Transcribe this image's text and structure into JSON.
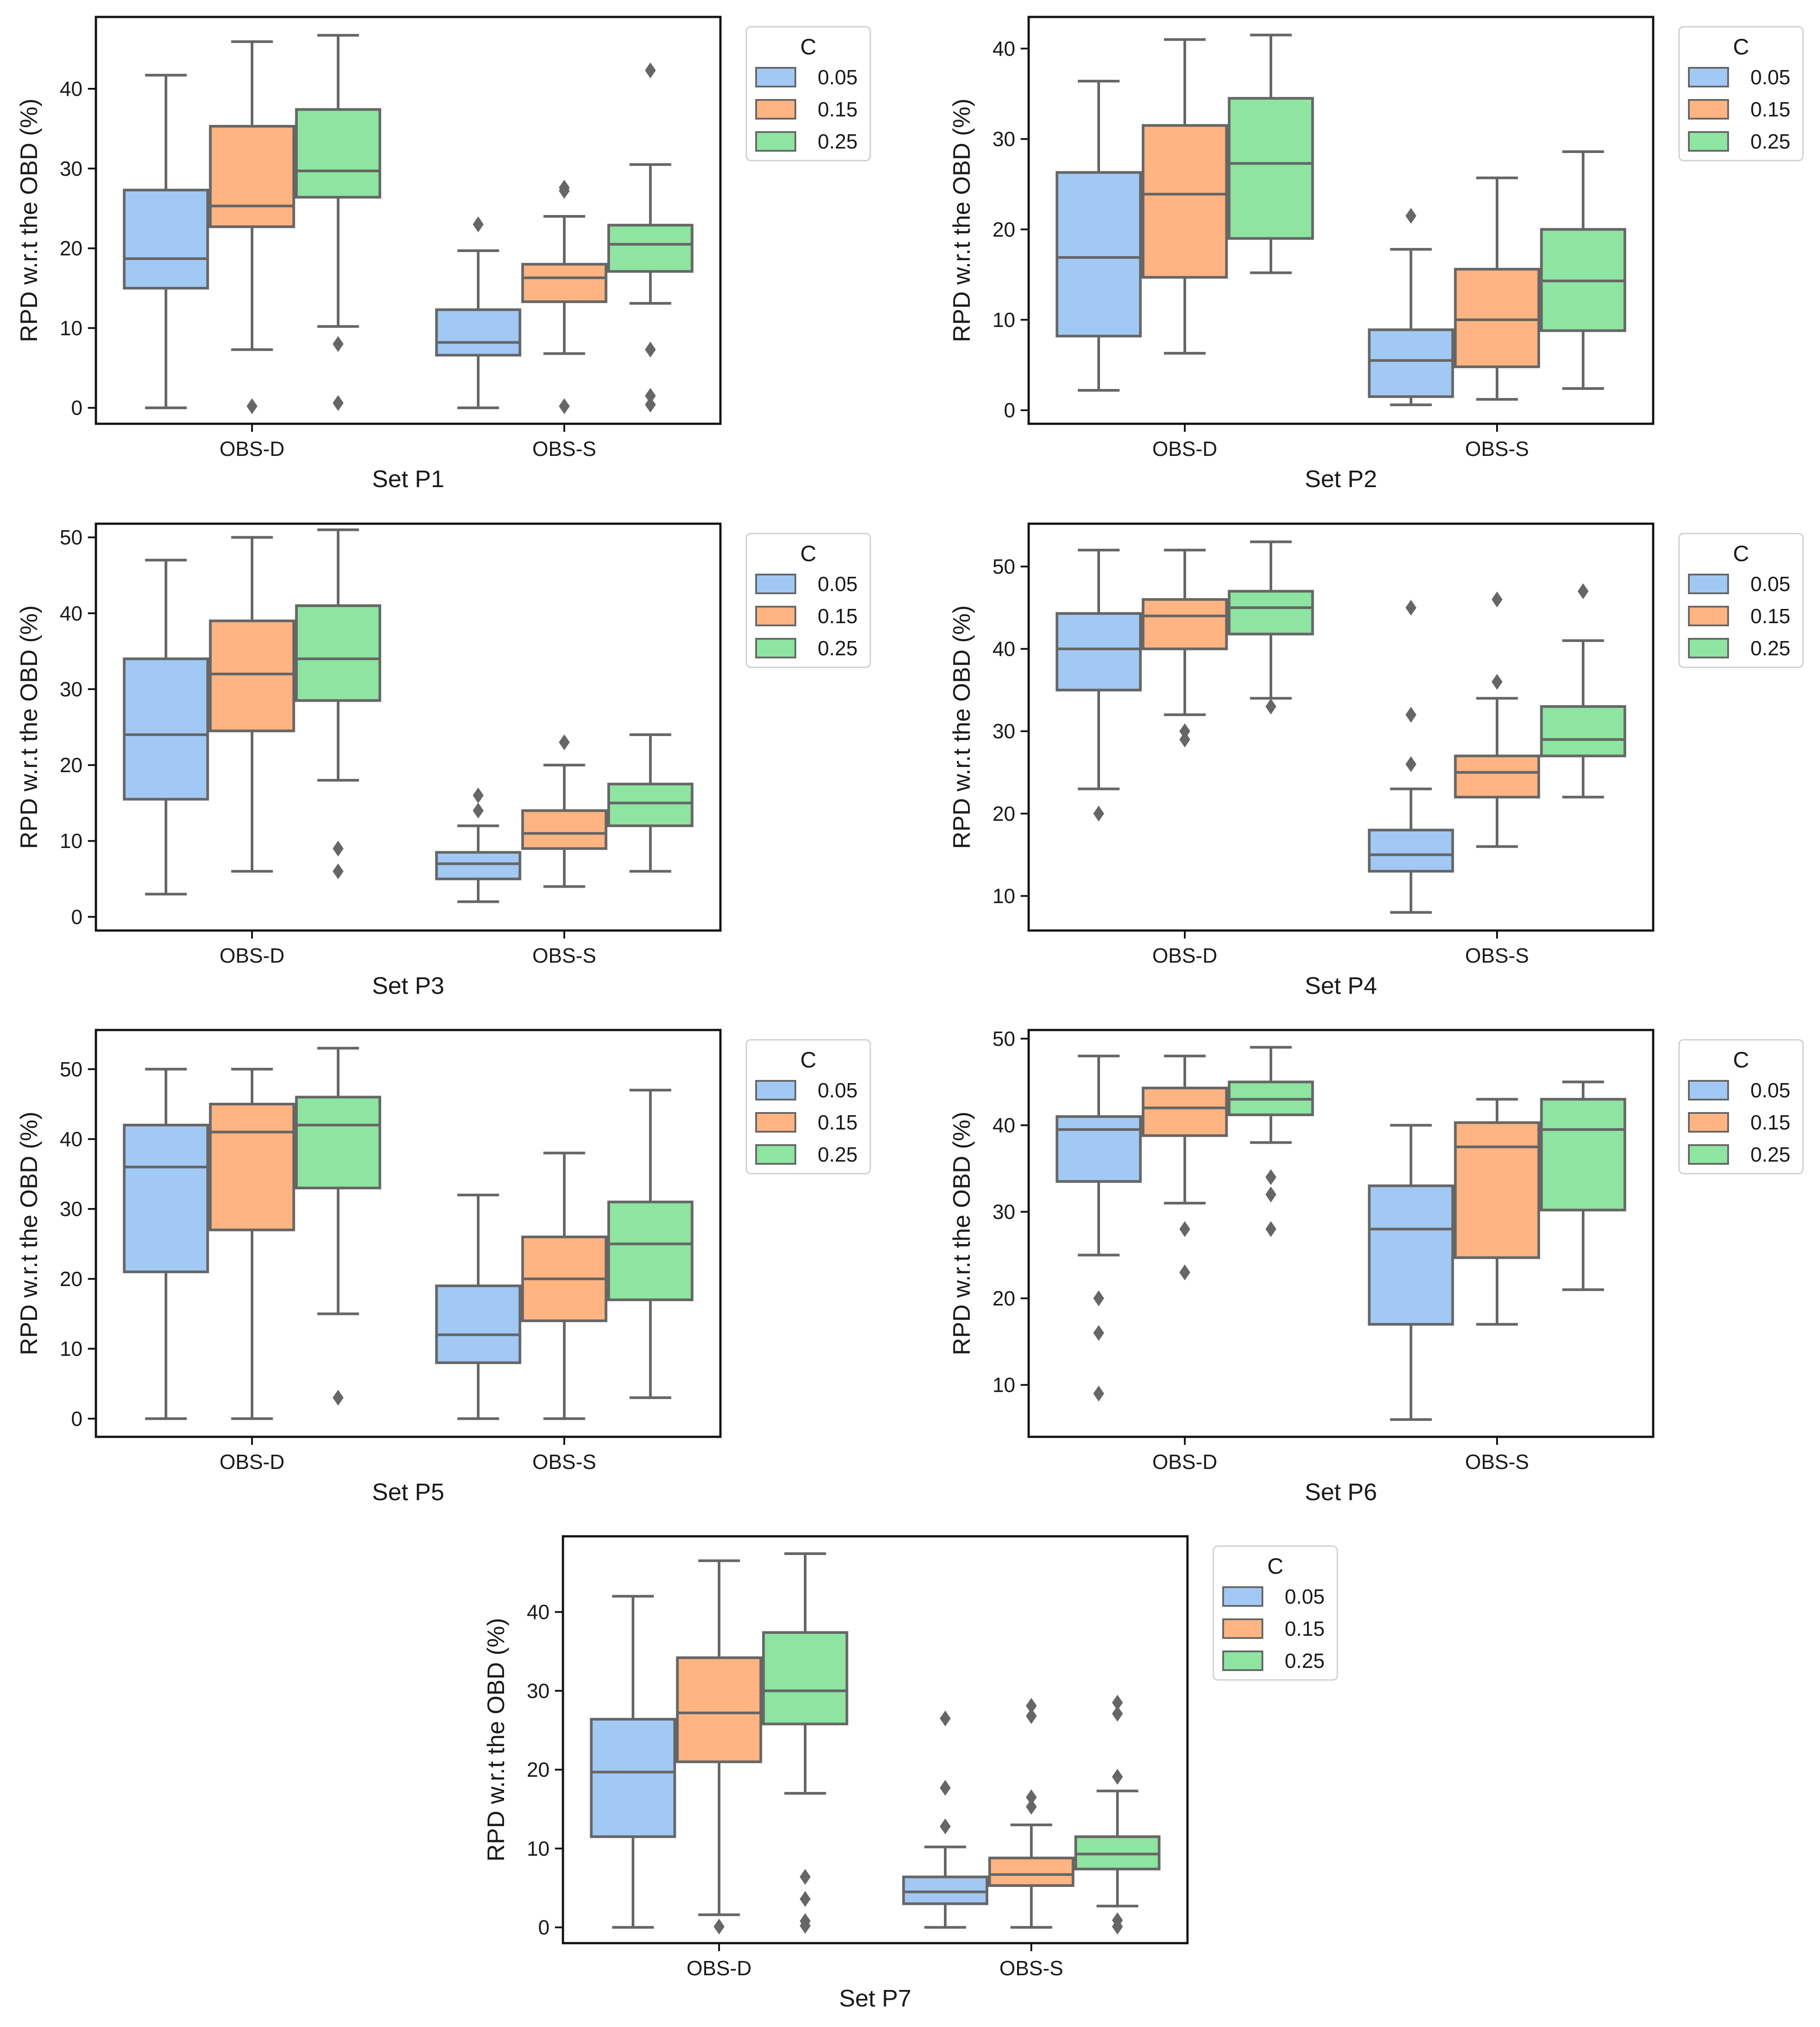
{
  "chart_data": [
    {
      "type": "box",
      "title": "",
      "xlabel": "Set P1",
      "ylabel": "RPD w.r.t the OBD (%)",
      "ylim": [
        -2,
        49
      ],
      "yticks": [
        0,
        10,
        20,
        30,
        40
      ],
      "categories": [
        "OBS-D",
        "OBS-S"
      ],
      "legend": {
        "title": "C",
        "position": "outside-right"
      },
      "series": [
        {
          "name": "0.05",
          "color": "#a1c9f4",
          "boxes": [
            {
              "whislo": 0,
              "q1": 15,
              "med": 18.7,
              "q3": 27.3,
              "whishi": 41.7,
              "fliers": []
            },
            {
              "whislo": 0,
              "q1": 6.6,
              "med": 8.2,
              "q3": 12.3,
              "whishi": 19.7,
              "fliers": [
                23
              ]
            }
          ]
        },
        {
          "name": "0.15",
          "color": "#ffb482",
          "boxes": [
            {
              "whislo": 7.3,
              "q1": 22.7,
              "med": 25.3,
              "q3": 35.3,
              "whishi": 45.9,
              "fliers": [
                0.2
              ]
            },
            {
              "whislo": 6.8,
              "q1": 13.3,
              "med": 16.3,
              "q3": 18,
              "whishi": 24,
              "fliers": [
                0.2,
                27.2,
                27.6
              ]
            }
          ]
        },
        {
          "name": "0.25",
          "color": "#8de5a1",
          "boxes": [
            {
              "whislo": 10.2,
              "q1": 26.4,
              "med": 29.7,
              "q3": 37.4,
              "whishi": 46.7,
              "fliers": [
                0.6,
                8
              ]
            },
            {
              "whislo": 13.1,
              "q1": 17.1,
              "med": 20.5,
              "q3": 22.9,
              "whishi": 30.5,
              "fliers": [
                0.4,
                1.5,
                7.3,
                42.3
              ]
            }
          ]
        }
      ]
    },
    {
      "type": "box",
      "title": "",
      "xlabel": "Set P2",
      "ylabel": "RPD w.r.t the OBD (%)",
      "ylim": [
        -1.5,
        43.5
      ],
      "yticks": [
        0,
        10,
        20,
        30,
        40
      ],
      "categories": [
        "OBS-D",
        "OBS-S"
      ],
      "legend": {
        "title": "C",
        "position": "outside-right"
      },
      "series": [
        {
          "name": "0.05",
          "color": "#a1c9f4",
          "boxes": [
            {
              "whislo": 2.2,
              "q1": 8.2,
              "med": 16.9,
              "q3": 26.3,
              "whishi": 36.4,
              "fliers": []
            },
            {
              "whislo": 0.6,
              "q1": 1.5,
              "med": 5.5,
              "q3": 8.9,
              "whishi": 17.8,
              "fliers": [
                21.5
              ]
            }
          ]
        },
        {
          "name": "0.15",
          "color": "#ffb482",
          "boxes": [
            {
              "whislo": 6.3,
              "q1": 14.7,
              "med": 23.9,
              "q3": 31.5,
              "whishi": 41,
              "fliers": []
            },
            {
              "whislo": 1.2,
              "q1": 4.8,
              "med": 10,
              "q3": 15.6,
              "whishi": 25.7,
              "fliers": []
            }
          ]
        },
        {
          "name": "0.25",
          "color": "#8de5a1",
          "boxes": [
            {
              "whislo": 15.2,
              "q1": 19,
              "med": 27.3,
              "q3": 34.5,
              "whishi": 41.5,
              "fliers": []
            },
            {
              "whislo": 2.4,
              "q1": 8.8,
              "med": 14.3,
              "q3": 20,
              "whishi": 28.6,
              "fliers": []
            }
          ]
        }
      ]
    },
    {
      "type": "box",
      "title": "",
      "xlabel": "Set P3",
      "ylabel": "RPD w.r.t the OBD (%)",
      "ylim": [
        -1.8,
        51.8
      ],
      "yticks": [
        0,
        10,
        20,
        30,
        40,
        50
      ],
      "categories": [
        "OBS-D",
        "OBS-S"
      ],
      "legend": {
        "title": "C",
        "position": "outside-right"
      },
      "series": [
        {
          "name": "0.05",
          "color": "#a1c9f4",
          "boxes": [
            {
              "whislo": 3,
              "q1": 15.5,
              "med": 24,
              "q3": 34,
              "whishi": 47,
              "fliers": []
            },
            {
              "whislo": 2,
              "q1": 5,
              "med": 7,
              "q3": 8.5,
              "whishi": 12,
              "fliers": [
                14,
                16
              ]
            }
          ]
        },
        {
          "name": "0.15",
          "color": "#ffb482",
          "boxes": [
            {
              "whislo": 6,
              "q1": 24.5,
              "med": 32,
              "q3": 39,
              "whishi": 50,
              "fliers": []
            },
            {
              "whislo": 4,
              "q1": 9,
              "med": 11,
              "q3": 14,
              "whishi": 20,
              "fliers": [
                23
              ]
            }
          ]
        },
        {
          "name": "0.25",
          "color": "#8de5a1",
          "boxes": [
            {
              "whislo": 18,
              "q1": 28.5,
              "med": 34,
              "q3": 41,
              "whishi": 51,
              "fliers": [
                6,
                9
              ]
            },
            {
              "whislo": 6,
              "q1": 12,
              "med": 15,
              "q3": 17.5,
              "whishi": 24,
              "fliers": []
            }
          ]
        }
      ]
    },
    {
      "type": "box",
      "title": "",
      "xlabel": "Set P4",
      "ylabel": "RPD w.r.t the OBD (%)",
      "ylim": [
        5.8,
        55.2
      ],
      "yticks": [
        10,
        20,
        30,
        40,
        50
      ],
      "categories": [
        "OBS-D",
        "OBS-S"
      ],
      "legend": {
        "title": "C",
        "position": "outside-right"
      },
      "series": [
        {
          "name": "0.05",
          "color": "#a1c9f4",
          "boxes": [
            {
              "whislo": 23,
              "q1": 35,
              "med": 40,
              "q3": 44.3,
              "whishi": 52,
              "fliers": [
                20
              ]
            },
            {
              "whislo": 8,
              "q1": 13,
              "med": 15,
              "q3": 18,
              "whishi": 23,
              "fliers": [
                26,
                32,
                45
              ]
            }
          ]
        },
        {
          "name": "0.15",
          "color": "#ffb482",
          "boxes": [
            {
              "whislo": 32,
              "q1": 40,
              "med": 44,
              "q3": 46,
              "whishi": 52,
              "fliers": [
                29,
                30
              ]
            },
            {
              "whislo": 16,
              "q1": 22,
              "med": 25,
              "q3": 27,
              "whishi": 34,
              "fliers": [
                36,
                46
              ]
            }
          ]
        },
        {
          "name": "0.25",
          "color": "#8de5a1",
          "boxes": [
            {
              "whislo": 34,
              "q1": 41.8,
              "med": 45,
              "q3": 47,
              "whishi": 53,
              "fliers": [
                33
              ]
            },
            {
              "whislo": 22,
              "q1": 27,
              "med": 29,
              "q3": 33,
              "whishi": 41,
              "fliers": [
                47
              ]
            }
          ]
        }
      ]
    },
    {
      "type": "box",
      "title": "",
      "xlabel": "Set P5",
      "ylabel": "RPD w.r.t the OBD (%)",
      "ylim": [
        -2.6,
        55.6
      ],
      "yticks": [
        0,
        10,
        20,
        30,
        40,
        50
      ],
      "categories": [
        "OBS-D",
        "OBS-S"
      ],
      "legend": {
        "title": "C",
        "position": "outside-right"
      },
      "series": [
        {
          "name": "0.05",
          "color": "#a1c9f4",
          "boxes": [
            {
              "whislo": 0,
              "q1": 21,
              "med": 36,
              "q3": 42,
              "whishi": 50,
              "fliers": []
            },
            {
              "whislo": 0,
              "q1": 8,
              "med": 12,
              "q3": 19,
              "whishi": 32,
              "fliers": []
            }
          ]
        },
        {
          "name": "0.15",
          "color": "#ffb482",
          "boxes": [
            {
              "whislo": 0,
              "q1": 27,
              "med": 41,
              "q3": 45,
              "whishi": 50,
              "fliers": []
            },
            {
              "whislo": 0,
              "q1": 14,
              "med": 20,
              "q3": 26,
              "whishi": 38,
              "fliers": []
            }
          ]
        },
        {
          "name": "0.25",
          "color": "#8de5a1",
          "boxes": [
            {
              "whislo": 15,
              "q1": 33,
              "med": 42,
              "q3": 46,
              "whishi": 53,
              "fliers": [
                3
              ]
            },
            {
              "whislo": 3,
              "q1": 17,
              "med": 25,
              "q3": 31,
              "whishi": 47,
              "fliers": []
            }
          ]
        }
      ]
    },
    {
      "type": "box",
      "title": "",
      "xlabel": "Set P6",
      "ylabel": "RPD w.r.t the OBD (%)",
      "ylim": [
        4,
        51
      ],
      "yticks": [
        10,
        20,
        30,
        40,
        50
      ],
      "categories": [
        "OBS-D",
        "OBS-S"
      ],
      "legend": {
        "title": "C",
        "position": "outside-right"
      },
      "series": [
        {
          "name": "0.05",
          "color": "#a1c9f4",
          "boxes": [
            {
              "whislo": 25,
              "q1": 33.5,
              "med": 39.5,
              "q3": 41,
              "whishi": 48,
              "fliers": [
                9,
                16,
                20
              ]
            },
            {
              "whislo": 6,
              "q1": 17,
              "med": 28,
              "q3": 33,
              "whishi": 40,
              "fliers": []
            }
          ]
        },
        {
          "name": "0.15",
          "color": "#ffb482",
          "boxes": [
            {
              "whislo": 31,
              "q1": 38.8,
              "med": 42,
              "q3": 44.3,
              "whishi": 48,
              "fliers": [
                23,
                28
              ]
            },
            {
              "whislo": 17,
              "q1": 24.7,
              "med": 37.5,
              "q3": 40.3,
              "whishi": 43,
              "fliers": []
            }
          ]
        },
        {
          "name": "0.25",
          "color": "#8de5a1",
          "boxes": [
            {
              "whislo": 38,
              "q1": 41.2,
              "med": 43,
              "q3": 45,
              "whishi": 49,
              "fliers": [
                28,
                32,
                34
              ]
            },
            {
              "whislo": 21,
              "q1": 30.2,
              "med": 39.5,
              "q3": 43,
              "whishi": 45,
              "fliers": []
            }
          ]
        }
      ]
    },
    {
      "type": "box",
      "title": "",
      "xlabel": "Set P7",
      "ylabel": "RPD w.r.t the OBD (%)",
      "ylim": [
        -2,
        49.6
      ],
      "yticks": [
        0,
        10,
        20,
        30,
        40
      ],
      "categories": [
        "OBS-D",
        "OBS-S"
      ],
      "legend": {
        "title": "C",
        "position": "outside-right"
      },
      "series": [
        {
          "name": "0.05",
          "color": "#a1c9f4",
          "boxes": [
            {
              "whislo": 0,
              "q1": 11.5,
              "med": 19.7,
              "q3": 26.4,
              "whishi": 42,
              "fliers": []
            },
            {
              "whislo": 0,
              "q1": 3,
              "med": 4.5,
              "q3": 6.4,
              "whishi": 10.2,
              "fliers": [
                12.8,
                17.7,
                26.5
              ]
            }
          ]
        },
        {
          "name": "0.15",
          "color": "#ffb482",
          "boxes": [
            {
              "whislo": 1.6,
              "q1": 21,
              "med": 27.2,
              "q3": 34.2,
              "whishi": 46.5,
              "fliers": [
                0.1
              ]
            },
            {
              "whislo": 0,
              "q1": 5.3,
              "med": 6.7,
              "q3": 8.8,
              "whishi": 13,
              "fliers": [
                15.3,
                16.5,
                26.8,
                28.1
              ]
            }
          ]
        },
        {
          "name": "0.25",
          "color": "#8de5a1",
          "boxes": [
            {
              "whislo": 17,
              "q1": 25.8,
              "med": 30,
              "q3": 37.4,
              "whishi": 47.4,
              "fliers": [
                0.2,
                0.8,
                3.6,
                6.4
              ]
            },
            {
              "whislo": 2.7,
              "q1": 7.4,
              "med": 9.3,
              "q3": 11.5,
              "whishi": 17.3,
              "fliers": [
                0.1,
                0.9,
                19.1,
                27.1,
                28.5
              ]
            }
          ]
        }
      ]
    }
  ],
  "colors": {
    "whisker": "#666666",
    "frame": "#111111",
    "text": "#1a1a1a"
  }
}
